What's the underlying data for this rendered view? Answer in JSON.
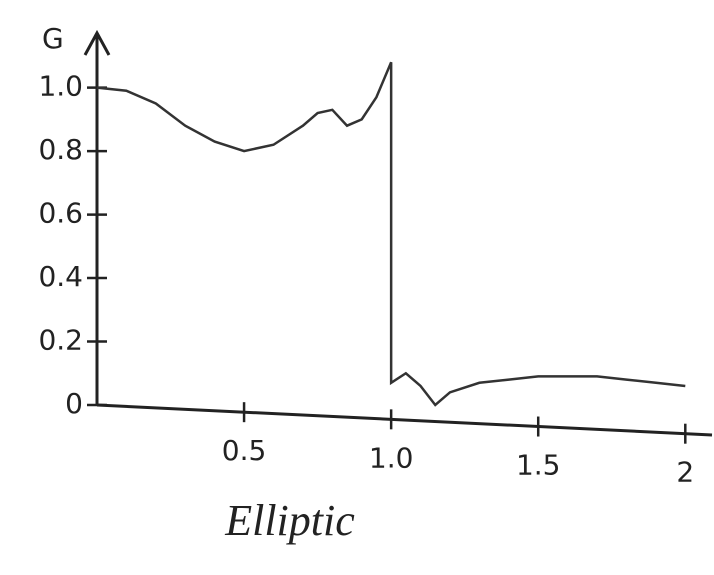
{
  "chart_data": {
    "type": "line",
    "title": "Elliptic",
    "y_label": "G",
    "x": [
      0,
      0.1,
      0.2,
      0.3,
      0.4,
      0.5,
      0.6,
      0.7,
      0.75,
      0.8,
      0.85,
      0.9,
      0.95,
      1.0,
      1.0,
      1.05,
      1.1,
      1.15,
      1.2,
      1.3,
      1.4,
      1.5,
      1.6,
      1.7,
      1.8,
      1.9,
      2.0
    ],
    "values": [
      1.0,
      0.99,
      0.95,
      0.88,
      0.83,
      0.8,
      0.82,
      0.88,
      0.92,
      0.93,
      0.88,
      0.9,
      0.97,
      1.08,
      0.07,
      0.1,
      0.06,
      0,
      0.04,
      0.07,
      0.08,
      0.09,
      0.09,
      0.09,
      0.08,
      0.07,
      0.06
    ],
    "color": "#333333",
    "xlim": [
      0,
      2.05
    ],
    "ylim": [
      0,
      1.15
    ],
    "xticks": [
      0.5,
      {
        "value": 1,
        "label": "1.0"
      },
      1.5,
      2
    ],
    "yticks": [
      0,
      0.2,
      0.4,
      0.6,
      0.8,
      {
        "value": 1,
        "label": "1.0"
      }
    ]
  }
}
